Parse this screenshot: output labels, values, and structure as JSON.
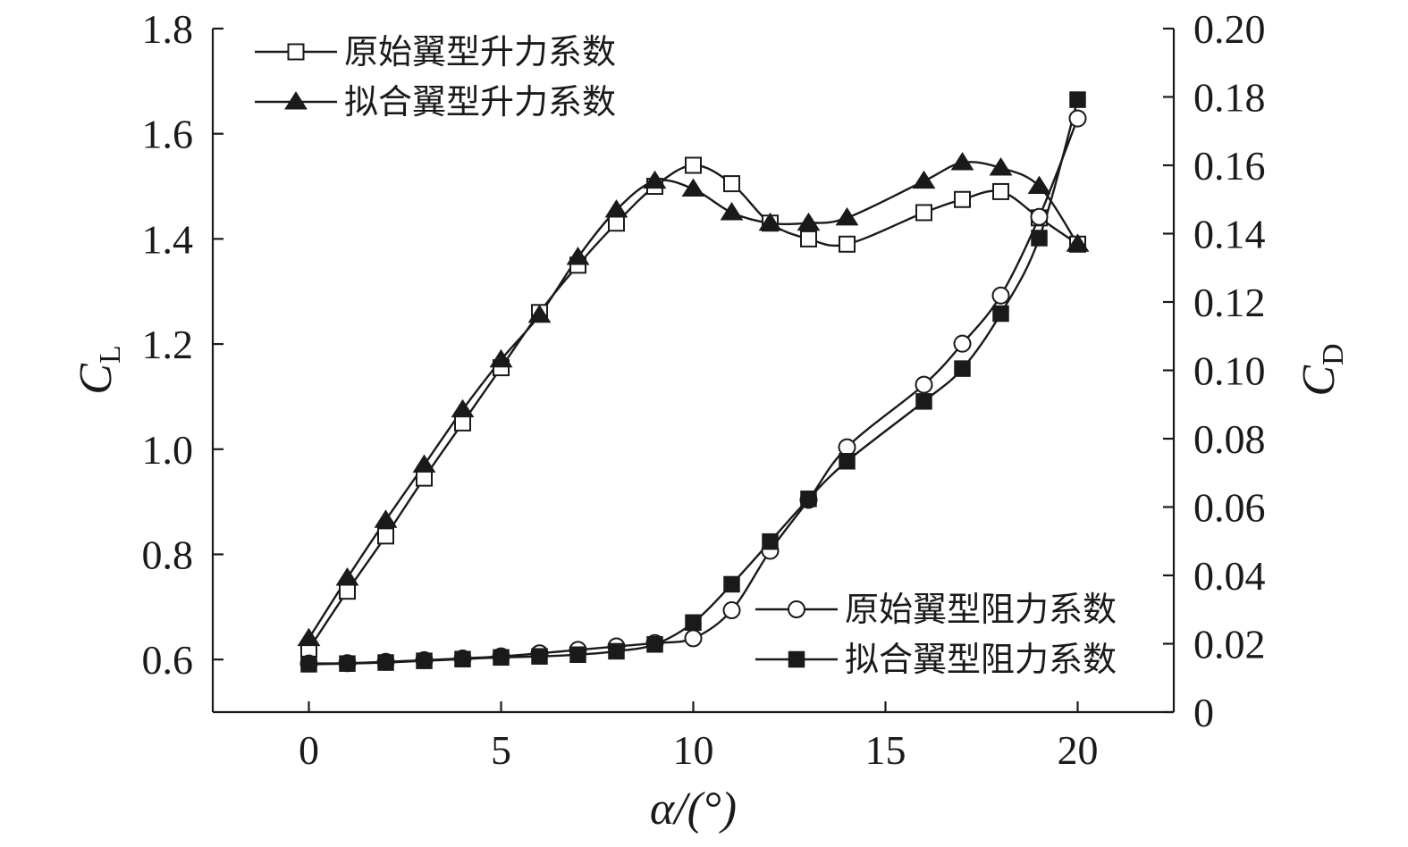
{
  "chart_data": {
    "type": "line",
    "xlabel": "α/(°)",
    "ylabel_left": {
      "main": "C",
      "sub": "L"
    },
    "ylabel_right": {
      "main": "C",
      "sub": "D"
    },
    "xlim": [
      -2.5,
      22.5
    ],
    "xticks": [
      0,
      5,
      10,
      15,
      20
    ],
    "ylim_left": [
      0.5,
      1.8
    ],
    "yticks_left": [
      "0.6",
      "0.8",
      "1.0",
      "1.2",
      "1.4",
      "1.6",
      "1.8"
    ],
    "ylim_right": [
      0,
      0.2
    ],
    "yticks_right": [
      "0",
      "0.02",
      "0.04",
      "0.06",
      "0.08",
      "0.10",
      "0.12",
      "0.14",
      "0.16",
      "0.18",
      "0.20"
    ],
    "grid": false,
    "series": [
      {
        "name": "原始翼型升力系数",
        "axis": "left",
        "marker": "open-square",
        "x": [
          0,
          1,
          2,
          3,
          4,
          5,
          6,
          7,
          8,
          9,
          10,
          11,
          12,
          13,
          14,
          16,
          17,
          18,
          19,
          20
        ],
        "y": [
          0.62,
          0.73,
          0.835,
          0.945,
          1.05,
          1.155,
          1.26,
          1.35,
          1.43,
          1.5,
          1.54,
          1.505,
          1.43,
          1.4,
          1.39,
          1.45,
          1.475,
          1.49,
          1.44,
          1.39
        ]
      },
      {
        "name": "拟合翼型升力系数",
        "axis": "left",
        "marker": "filled-triangle",
        "x": [
          0,
          1,
          2,
          3,
          4,
          5,
          6,
          7,
          8,
          9,
          10,
          11,
          12,
          13,
          14,
          16,
          17,
          18,
          19,
          20
        ],
        "y": [
          0.64,
          0.755,
          0.865,
          0.97,
          1.075,
          1.17,
          1.255,
          1.365,
          1.455,
          1.51,
          1.495,
          1.45,
          1.43,
          1.43,
          1.44,
          1.51,
          1.545,
          1.535,
          1.5,
          1.39
        ]
      },
      {
        "name": "原始翼型阻力系数",
        "axis": "right",
        "marker": "open-circle",
        "x": [
          0,
          1,
          2,
          3,
          4,
          5,
          6,
          7,
          8,
          9,
          10,
          11,
          12,
          13,
          14,
          16,
          17,
          18,
          19,
          20
        ],
        "y": [
          0.0142,
          0.0143,
          0.0147,
          0.0152,
          0.0157,
          0.0163,
          0.0172,
          0.0182,
          0.0192,
          0.0202,
          0.0216,
          0.0298,
          0.0472,
          0.0621,
          0.0775,
          0.0958,
          0.1078,
          0.1219,
          0.1449,
          0.1737
        ]
      },
      {
        "name": "拟合翼型阻力系数",
        "axis": "right",
        "marker": "filled-square",
        "x": [
          0,
          1,
          2,
          3,
          4,
          5,
          6,
          7,
          8,
          9,
          10,
          11,
          12,
          13,
          14,
          16,
          17,
          18,
          19,
          20
        ],
        "y": [
          0.014,
          0.0142,
          0.0145,
          0.015,
          0.0155,
          0.016,
          0.0163,
          0.0168,
          0.0178,
          0.0198,
          0.0262,
          0.0374,
          0.0499,
          0.0624,
          0.0734,
          0.0909,
          0.1005,
          0.1166,
          0.1387,
          0.1792
        ]
      }
    ],
    "legend_groups": [
      {
        "placement": "top-left",
        "series": [
          0,
          1
        ]
      },
      {
        "placement": "bottom-right",
        "series": [
          2,
          3
        ]
      }
    ]
  }
}
